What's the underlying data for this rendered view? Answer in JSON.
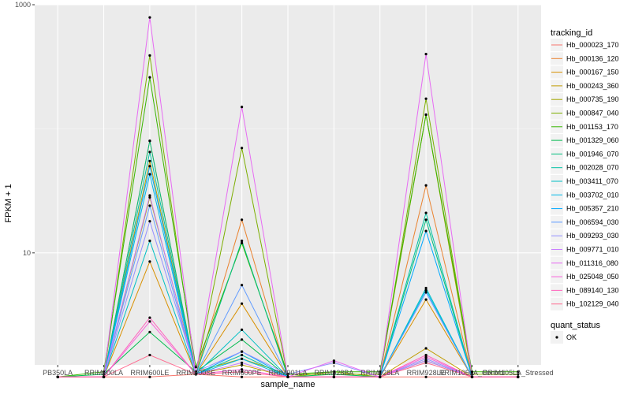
{
  "chart_data": {
    "type": "line",
    "xlabel": "sample_name",
    "ylabel": "FPKM + 1",
    "yscale": "log10",
    "ylim": [
      1.25,
      1000
    ],
    "y_ticks": [
      10,
      1000
    ],
    "y_tick_labels": [
      "10",
      "1000"
    ],
    "grid": true,
    "categories": [
      "PB350LA",
      "RRIM600LA",
      "RRIM600LE",
      "RRIM600SE",
      "RRIM600PE",
      "RRIM901LA",
      "RRIM928BA",
      "RRIM928LA",
      "RRIM928LE",
      "RRIM105LA_Control",
      "RRIM105LA_Stressed"
    ],
    "category_tick_labels": [
      "PB350LA",
      "RRIM600LA",
      "RRIM600LE",
      "RRIM600SE",
      "RRIM600PE",
      "RRIM901LA",
      "RRIM928BA",
      "RRIM928LA",
      "RRIM928LE",
      "RRIM105LA_Control",
      "RRIM105LA_Stressed"
    ],
    "legend_title": "tracking_id",
    "legend_position": "right",
    "series": [
      {
        "name": "Hb_000023_170",
        "color": "#F8766D",
        "values": [
          1,
          1,
          1,
          1.05,
          1,
          1,
          1,
          1,
          1,
          1,
          1
        ]
      },
      {
        "name": "Hb_000136_120",
        "color": "#EA8331",
        "values": [
          1,
          1,
          80,
          1.05,
          18.5,
          1,
          1,
          1,
          35,
          1,
          1
        ]
      },
      {
        "name": "Hb_000167_150",
        "color": "#D89000",
        "values": [
          1,
          1,
          8.5,
          1.05,
          3.9,
          1,
          1,
          1,
          4.2,
          1,
          1
        ]
      },
      {
        "name": "Hb_000243_360",
        "color": "#C09B00",
        "values": [
          1,
          1,
          55,
          1.05,
          1.25,
          1,
          1,
          1,
          1.7,
          1,
          1
        ]
      },
      {
        "name": "Hb_000735_190",
        "color": "#A3A500",
        "values": [
          1,
          1,
          28,
          1.1,
          1.4,
          1.05,
          1.05,
          1.05,
          130,
          1,
          1
        ]
      },
      {
        "name": "Hb_000847_040",
        "color": "#7CAE00",
        "values": [
          1,
          1,
          390,
          1.05,
          70,
          1,
          1.1,
          1,
          175,
          1.05,
          1.05
        ]
      },
      {
        "name": "Hb_001153_170",
        "color": "#39B600",
        "values": [
          1,
          1.1,
          260,
          1.2,
          12,
          1.05,
          1.1,
          1.1,
          130,
          1.1,
          1.1
        ]
      },
      {
        "name": "Hb_001329_060",
        "color": "#00BB4E",
        "values": [
          1,
          1.05,
          2.3,
          1.1,
          2.0,
          1,
          1.05,
          1,
          1.35,
          1,
          1
        ]
      },
      {
        "name": "Hb_001946_070",
        "color": "#00BF7D",
        "values": [
          1,
          1,
          80,
          1.05,
          12.5,
          1,
          1,
          1,
          18.5,
          1,
          1
        ]
      },
      {
        "name": "Hb_002028_070",
        "color": "#00C1A3",
        "values": [
          1,
          1,
          65,
          1.05,
          1.5,
          1,
          1,
          1,
          21,
          1,
          1
        ]
      },
      {
        "name": "Hb_003411_070",
        "color": "#00BFC4",
        "values": [
          1,
          1,
          12.5,
          1.05,
          2.4,
          1,
          1,
          1,
          5.2,
          1,
          1
        ]
      },
      {
        "name": "Hb_003702_010",
        "color": "#00B8E7",
        "values": [
          1,
          1,
          43,
          1.05,
          1.4,
          1,
          1,
          1,
          5,
          1,
          1
        ]
      },
      {
        "name": "Hb_005357_210",
        "color": "#00A9FF",
        "values": [
          1,
          1,
          50,
          1.05,
          1.6,
          1,
          1,
          1,
          15,
          1,
          1
        ]
      },
      {
        "name": "Hb_006594_030",
        "color": "#619CFF",
        "values": [
          1,
          1,
          24,
          1.05,
          5.5,
          1,
          1,
          1,
          4.8,
          1,
          1
        ]
      },
      {
        "name": "Hb_009293_030",
        "color": "#9590FF",
        "values": [
          1,
          1,
          18,
          1.1,
          1.6,
          1.05,
          1.3,
          1,
          1.4,
          1,
          1
        ]
      },
      {
        "name": "Hb_009771_010",
        "color": "#C77CFF",
        "values": [
          1,
          1,
          29,
          1.05,
          1.3,
          1,
          1,
          1,
          1.35,
          1,
          1
        ]
      },
      {
        "name": "Hb_011316_080",
        "color": "#E76BF3",
        "values": [
          1,
          1,
          790,
          1.05,
          150,
          1,
          1.35,
          1,
          400,
          1,
          1
        ]
      },
      {
        "name": "Hb_025048_050",
        "color": "#FA62DB",
        "values": [
          1,
          1,
          2.8,
          1.05,
          1.15,
          1,
          1,
          1,
          1.45,
          1,
          1
        ]
      },
      {
        "name": "Hb_089140_130",
        "color": "#FF62BC",
        "values": [
          1,
          1,
          3.0,
          1.05,
          1.1,
          1,
          1,
          1,
          1.5,
          1,
          1
        ]
      },
      {
        "name": "Hb_102129_040",
        "color": "#FF6C91",
        "values": [
          1,
          1,
          1.5,
          1.05,
          1.1,
          1,
          1,
          1,
          1.3,
          1,
          1
        ]
      }
    ],
    "shape_legend_title": "quant_status",
    "shape_legend_items": [
      {
        "label": "OK",
        "shape": "point",
        "color": "#000000"
      }
    ]
  }
}
